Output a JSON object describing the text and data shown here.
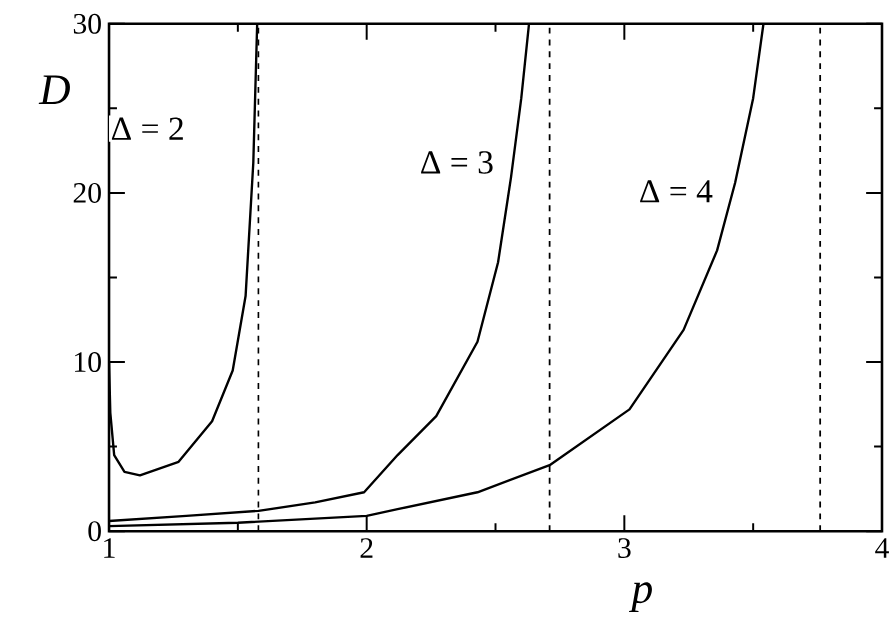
{
  "chart_data": {
    "type": "line",
    "xlabel": "p",
    "ylabel": "D",
    "xlim": [
      1,
      4
    ],
    "ylim": [
      0,
      30
    ],
    "xticks": [
      1,
      2,
      3,
      4
    ],
    "yticks": [
      0,
      10,
      20,
      30
    ],
    "marker": "none",
    "line_style": "solid",
    "series": [
      {
        "color": "#000000",
        "x": [
          1.0,
          1.005,
          1.02,
          1.06,
          1.12,
          1.27,
          1.4,
          1.48,
          1.53,
          1.56,
          1.575
        ],
        "values": [
          10,
          7,
          4.5,
          3.5,
          3.3,
          4.1,
          6.5,
          9.5,
          13.9,
          21.8,
          30
        ]
      },
      {
        "color": "#000000",
        "x": [
          1.0,
          1.3,
          1.58,
          1.8,
          1.99,
          2.12,
          2.27,
          2.43,
          2.51,
          2.56,
          2.6,
          2.63
        ],
        "values": [
          0.6,
          0.9,
          1.2,
          1.7,
          2.3,
          4.5,
          6.8,
          11.2,
          15.9,
          20.9,
          25.6,
          30
        ]
      },
      {
        "color": "#000000",
        "x": [
          1.0,
          1.5,
          2.0,
          2.12,
          2.43,
          2.71,
          3.02,
          3.23,
          3.36,
          3.43,
          3.5,
          3.54
        ],
        "values": [
          0.3,
          0.5,
          0.9,
          1.3,
          2.3,
          3.9,
          7.2,
          11.9,
          16.6,
          20.6,
          25.6,
          30
        ]
      }
    ],
    "ref_lines": [
      {
        "axis": "x",
        "value": 1.58,
        "line_style": "dashed",
        "color": "#000000"
      },
      {
        "axis": "x",
        "value": 2.71,
        "line_style": "dashed",
        "color": "#000000"
      },
      {
        "axis": "x",
        "value": 3.76,
        "line_style": "dashed",
        "color": "#000000"
      }
    ],
    "annotations": [
      {
        "text": "Δ = 2",
        "x": 1.15,
        "y": 23.8
      },
      {
        "text": "Δ = 3",
        "x": 2.35,
        "y": 21.8
      },
      {
        "text": "Δ = 4",
        "x": 3.2,
        "y": 20.1
      }
    ]
  }
}
